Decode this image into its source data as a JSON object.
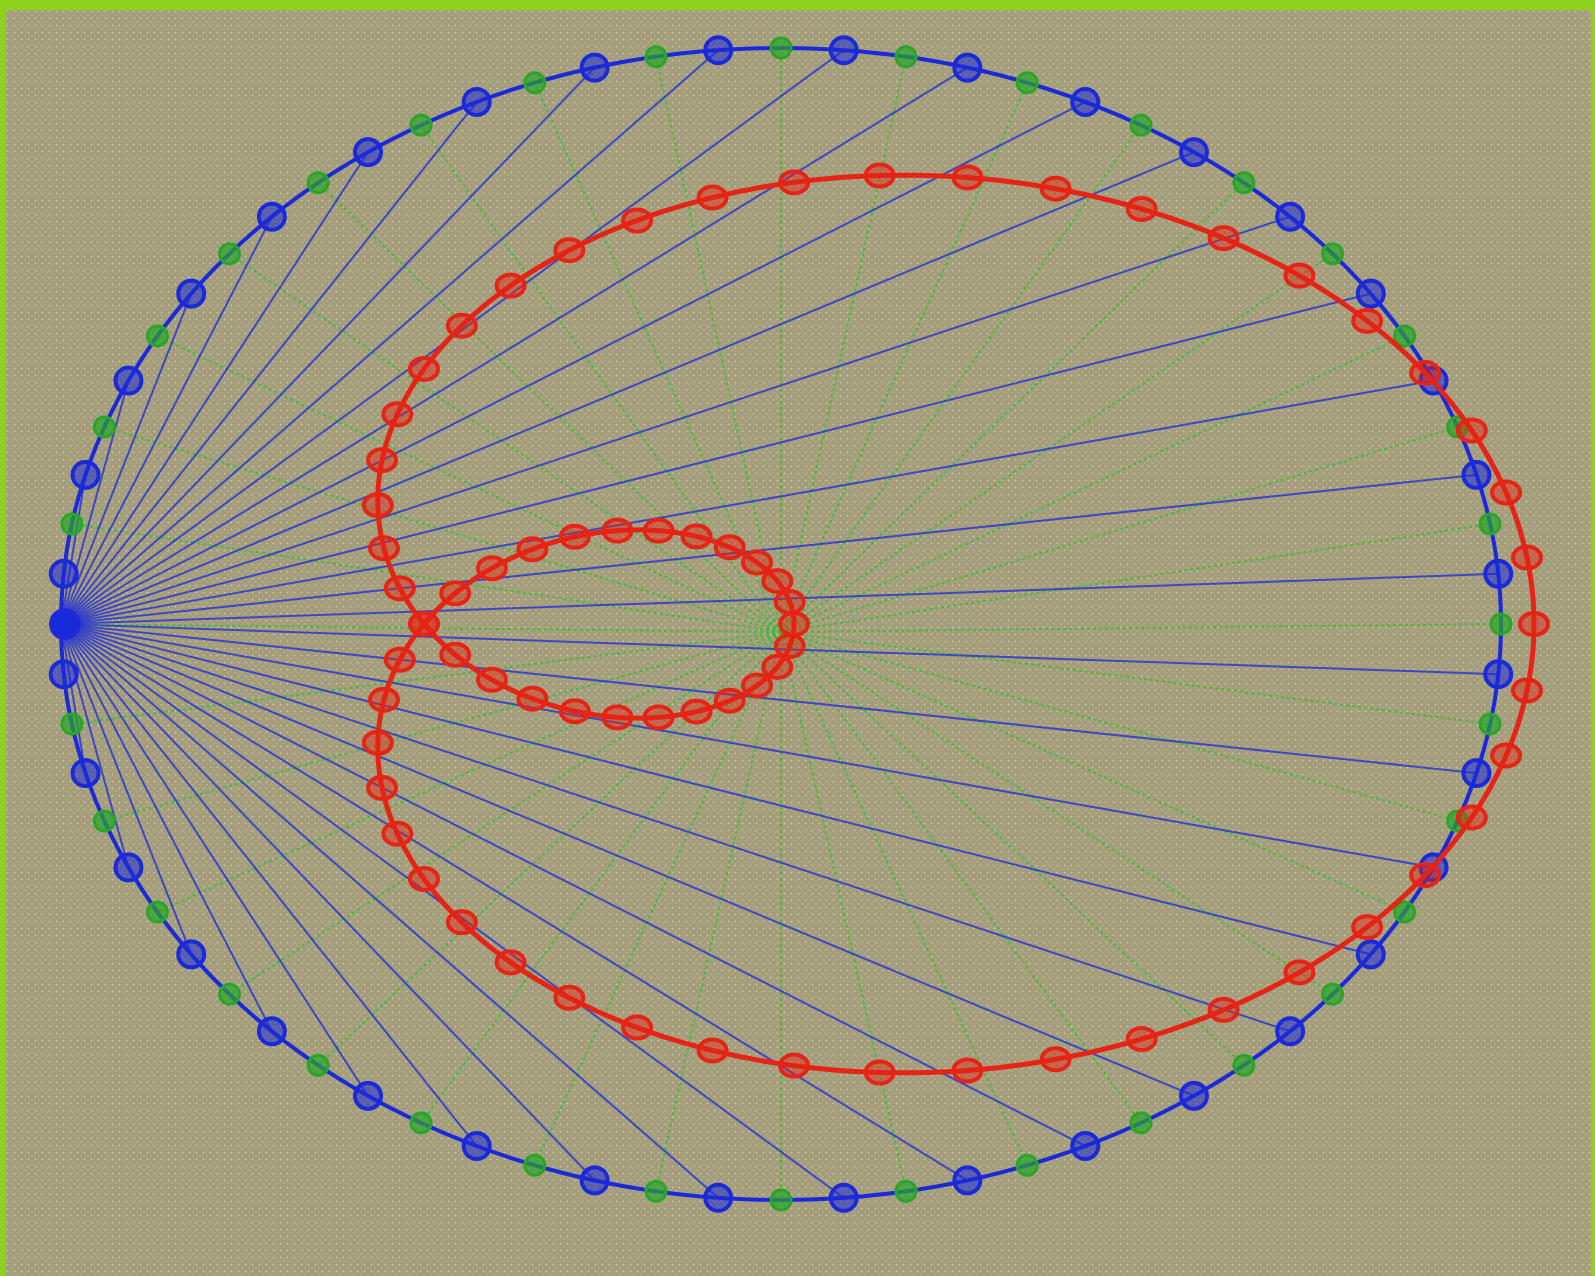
{
  "diagram": {
    "colors": {
      "frame": "#8fd21c",
      "background": "#a59e7c",
      "base_circle": "#1b2ad8",
      "base_points": "#1b2ad8",
      "center_rays": "#2fbf2f",
      "midpoints": "#2aa52a",
      "curve": "#e52415"
    },
    "base_point_count": 36,
    "midpoint_count": 36,
    "curve_point_count": 72,
    "curve_type": "limacon",
    "labels": []
  }
}
